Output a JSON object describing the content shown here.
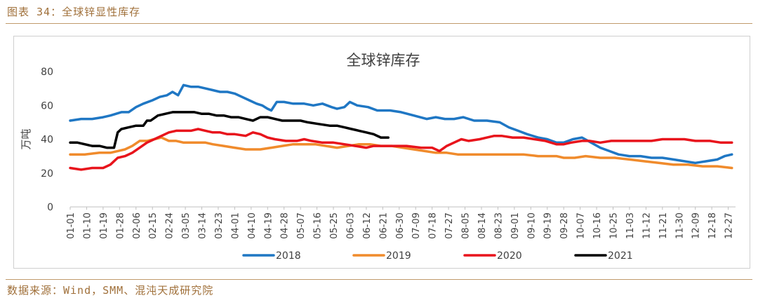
{
  "caption": "图表 34：全球锌显性库存",
  "source": "数据来源：Wind，SMM、混沌天成研究院",
  "chart_data": {
    "type": "line",
    "title": "全球锌库存",
    "ylabel": "万吨",
    "ylim": [
      0,
      80
    ],
    "yticks": [
      0,
      20,
      40,
      60,
      80
    ],
    "grid": false,
    "legend_position": "bottom",
    "x_domain": [
      0,
      364
    ],
    "x_ticks": [
      {
        "label": "01-01",
        "day": 0
      },
      {
        "label": "01-10",
        "day": 9
      },
      {
        "label": "01-19",
        "day": 18
      },
      {
        "label": "01-28",
        "day": 27
      },
      {
        "label": "02-06",
        "day": 36
      },
      {
        "label": "02-15",
        "day": 45
      },
      {
        "label": "02-24",
        "day": 54
      },
      {
        "label": "03-05",
        "day": 63
      },
      {
        "label": "03-14",
        "day": 72
      },
      {
        "label": "03-23",
        "day": 81
      },
      {
        "label": "04-01",
        "day": 90
      },
      {
        "label": "04-10",
        "day": 99
      },
      {
        "label": "04-19",
        "day": 108
      },
      {
        "label": "04-28",
        "day": 117
      },
      {
        "label": "05-07",
        "day": 126
      },
      {
        "label": "05-16",
        "day": 135
      },
      {
        "label": "05-25",
        "day": 144
      },
      {
        "label": "06-03",
        "day": 153
      },
      {
        "label": "06-12",
        "day": 162
      },
      {
        "label": "06-21",
        "day": 171
      },
      {
        "label": "06-30",
        "day": 180
      },
      {
        "label": "07-09",
        "day": 189
      },
      {
        "label": "07-18",
        "day": 198
      },
      {
        "label": "07-27",
        "day": 207
      },
      {
        "label": "08-05",
        "day": 216
      },
      {
        "label": "08-14",
        "day": 225
      },
      {
        "label": "08-23",
        "day": 234
      },
      {
        "label": "09-01",
        "day": 243
      },
      {
        "label": "09-10",
        "day": 252
      },
      {
        "label": "09-19",
        "day": 261
      },
      {
        "label": "09-28",
        "day": 270
      },
      {
        "label": "10-07",
        "day": 279
      },
      {
        "label": "10-16",
        "day": 288
      },
      {
        "label": "10-25",
        "day": 297
      },
      {
        "label": "11-03",
        "day": 306
      },
      {
        "label": "11-12",
        "day": 315
      },
      {
        "label": "11-21",
        "day": 324
      },
      {
        "label": "11-30",
        "day": 333
      },
      {
        "label": "12-09",
        "day": 342
      },
      {
        "label": "12-18",
        "day": 351
      },
      {
        "label": "12-27",
        "day": 360
      }
    ],
    "series": [
      {
        "name": "2018",
        "color": "#1f77c4",
        "points": [
          [
            0,
            51
          ],
          [
            6,
            52
          ],
          [
            12,
            52
          ],
          [
            18,
            53
          ],
          [
            22,
            54
          ],
          [
            28,
            56
          ],
          [
            32,
            56
          ],
          [
            36,
            59
          ],
          [
            40,
            61
          ],
          [
            45,
            63
          ],
          [
            49,
            65
          ],
          [
            53,
            66
          ],
          [
            56,
            68
          ],
          [
            59,
            66
          ],
          [
            62,
            72
          ],
          [
            66,
            71
          ],
          [
            70,
            71
          ],
          [
            74,
            70
          ],
          [
            78,
            69
          ],
          [
            82,
            68
          ],
          [
            86,
            68
          ],
          [
            90,
            67
          ],
          [
            94,
            65
          ],
          [
            98,
            63
          ],
          [
            102,
            61
          ],
          [
            105,
            60
          ],
          [
            108,
            58
          ],
          [
            110,
            57
          ],
          [
            113,
            62
          ],
          [
            117,
            62
          ],
          [
            122,
            61
          ],
          [
            128,
            61
          ],
          [
            133,
            60
          ],
          [
            138,
            61
          ],
          [
            143,
            59
          ],
          [
            146,
            58
          ],
          [
            150,
            59
          ],
          [
            153,
            62
          ],
          [
            157,
            60
          ],
          [
            163,
            59
          ],
          [
            168,
            57
          ],
          [
            175,
            57
          ],
          [
            181,
            56
          ],
          [
            188,
            54
          ],
          [
            195,
            52
          ],
          [
            200,
            53
          ],
          [
            205,
            52
          ],
          [
            210,
            52
          ],
          [
            215,
            53
          ],
          [
            221,
            51
          ],
          [
            228,
            51
          ],
          [
            235,
            50
          ],
          [
            240,
            47
          ],
          [
            245,
            45
          ],
          [
            250,
            43
          ],
          [
            256,
            41
          ],
          [
            261,
            40
          ],
          [
            266,
            38
          ],
          [
            270,
            38
          ],
          [
            275,
            40
          ],
          [
            280,
            41
          ],
          [
            285,
            38
          ],
          [
            290,
            35
          ],
          [
            295,
            33
          ],
          [
            300,
            31
          ],
          [
            306,
            30
          ],
          [
            312,
            30
          ],
          [
            318,
            29
          ],
          [
            324,
            29
          ],
          [
            330,
            28
          ],
          [
            336,
            27
          ],
          [
            342,
            26
          ],
          [
            348,
            27
          ],
          [
            354,
            28
          ],
          [
            358,
            30
          ],
          [
            362,
            31
          ]
        ]
      },
      {
        "name": "2019",
        "color": "#f08b2c",
        "points": [
          [
            0,
            31
          ],
          [
            8,
            31
          ],
          [
            16,
            32
          ],
          [
            22,
            32
          ],
          [
            26,
            33
          ],
          [
            30,
            34
          ],
          [
            34,
            36
          ],
          [
            38,
            39
          ],
          [
            42,
            39
          ],
          [
            46,
            40
          ],
          [
            50,
            41
          ],
          [
            54,
            39
          ],
          [
            58,
            39
          ],
          [
            62,
            38
          ],
          [
            68,
            38
          ],
          [
            74,
            38
          ],
          [
            78,
            37
          ],
          [
            84,
            36
          ],
          [
            90,
            35
          ],
          [
            96,
            34
          ],
          [
            100,
            34
          ],
          [
            104,
            34
          ],
          [
            110,
            35
          ],
          [
            116,
            36
          ],
          [
            122,
            37
          ],
          [
            128,
            37
          ],
          [
            134,
            37
          ],
          [
            140,
            36
          ],
          [
            146,
            35
          ],
          [
            152,
            36
          ],
          [
            158,
            37
          ],
          [
            164,
            37
          ],
          [
            170,
            36
          ],
          [
            176,
            36
          ],
          [
            182,
            35
          ],
          [
            188,
            34
          ],
          [
            194,
            33
          ],
          [
            200,
            32
          ],
          [
            206,
            32
          ],
          [
            212,
            31
          ],
          [
            218,
            31
          ],
          [
            226,
            31
          ],
          [
            234,
            31
          ],
          [
            240,
            31
          ],
          [
            248,
            31
          ],
          [
            256,
            30
          ],
          [
            262,
            30
          ],
          [
            266,
            30
          ],
          [
            270,
            29
          ],
          [
            276,
            29
          ],
          [
            282,
            30
          ],
          [
            290,
            29
          ],
          [
            298,
            29
          ],
          [
            306,
            28
          ],
          [
            314,
            27
          ],
          [
            322,
            26
          ],
          [
            330,
            25
          ],
          [
            338,
            25
          ],
          [
            346,
            24
          ],
          [
            354,
            24
          ],
          [
            362,
            23
          ]
        ]
      },
      {
        "name": "2020",
        "color": "#e8141c",
        "points": [
          [
            0,
            23
          ],
          [
            6,
            22
          ],
          [
            12,
            23
          ],
          [
            18,
            23
          ],
          [
            22,
            25
          ],
          [
            26,
            29
          ],
          [
            30,
            30
          ],
          [
            34,
            32
          ],
          [
            38,
            35
          ],
          [
            42,
            38
          ],
          [
            46,
            40
          ],
          [
            50,
            42
          ],
          [
            54,
            44
          ],
          [
            58,
            45
          ],
          [
            62,
            45
          ],
          [
            66,
            45
          ],
          [
            70,
            46
          ],
          [
            74,
            45
          ],
          [
            78,
            44
          ],
          [
            82,
            44
          ],
          [
            86,
            43
          ],
          [
            90,
            43
          ],
          [
            96,
            42
          ],
          [
            100,
            44
          ],
          [
            104,
            43
          ],
          [
            108,
            41
          ],
          [
            112,
            40
          ],
          [
            118,
            39
          ],
          [
            124,
            39
          ],
          [
            128,
            40
          ],
          [
            132,
            39
          ],
          [
            138,
            38
          ],
          [
            144,
            38
          ],
          [
            150,
            37
          ],
          [
            156,
            36
          ],
          [
            162,
            35
          ],
          [
            166,
            36
          ],
          [
            170,
            36
          ],
          [
            176,
            36
          ],
          [
            184,
            36
          ],
          [
            192,
            35
          ],
          [
            198,
            35
          ],
          [
            202,
            33
          ],
          [
            206,
            36
          ],
          [
            210,
            38
          ],
          [
            214,
            40
          ],
          [
            218,
            39
          ],
          [
            224,
            40
          ],
          [
            228,
            41
          ],
          [
            232,
            42
          ],
          [
            236,
            42
          ],
          [
            242,
            41
          ],
          [
            248,
            41
          ],
          [
            254,
            40
          ],
          [
            260,
            39
          ],
          [
            266,
            37
          ],
          [
            270,
            37
          ],
          [
            274,
            38
          ],
          [
            280,
            39
          ],
          [
            284,
            39
          ],
          [
            290,
            38
          ],
          [
            296,
            39
          ],
          [
            302,
            39
          ],
          [
            310,
            39
          ],
          [
            318,
            39
          ],
          [
            324,
            40
          ],
          [
            330,
            40
          ],
          [
            336,
            40
          ],
          [
            342,
            39
          ],
          [
            350,
            39
          ],
          [
            356,
            38
          ],
          [
            362,
            38
          ]
        ]
      },
      {
        "name": "2021",
        "color": "#000000",
        "points": [
          [
            0,
            38
          ],
          [
            4,
            38
          ],
          [
            8,
            37
          ],
          [
            12,
            36
          ],
          [
            16,
            36
          ],
          [
            20,
            35
          ],
          [
            24,
            35
          ],
          [
            26,
            44
          ],
          [
            28,
            46
          ],
          [
            32,
            47
          ],
          [
            36,
            48
          ],
          [
            40,
            48
          ],
          [
            42,
            51
          ],
          [
            44,
            51
          ],
          [
            48,
            54
          ],
          [
            52,
            55
          ],
          [
            56,
            56
          ],
          [
            60,
            56
          ],
          [
            64,
            56
          ],
          [
            68,
            56
          ],
          [
            72,
            55
          ],
          [
            76,
            55
          ],
          [
            80,
            54
          ],
          [
            84,
            54
          ],
          [
            88,
            53
          ],
          [
            92,
            53
          ],
          [
            96,
            52
          ],
          [
            100,
            51
          ],
          [
            104,
            53
          ],
          [
            108,
            53
          ],
          [
            112,
            52
          ],
          [
            116,
            51
          ],
          [
            120,
            51
          ],
          [
            126,
            51
          ],
          [
            130,
            50
          ],
          [
            136,
            49
          ],
          [
            142,
            48
          ],
          [
            146,
            48
          ],
          [
            150,
            47
          ],
          [
            154,
            46
          ],
          [
            158,
            45
          ],
          [
            162,
            44
          ],
          [
            166,
            43
          ],
          [
            170,
            41
          ],
          [
            174,
            41
          ]
        ]
      }
    ]
  }
}
